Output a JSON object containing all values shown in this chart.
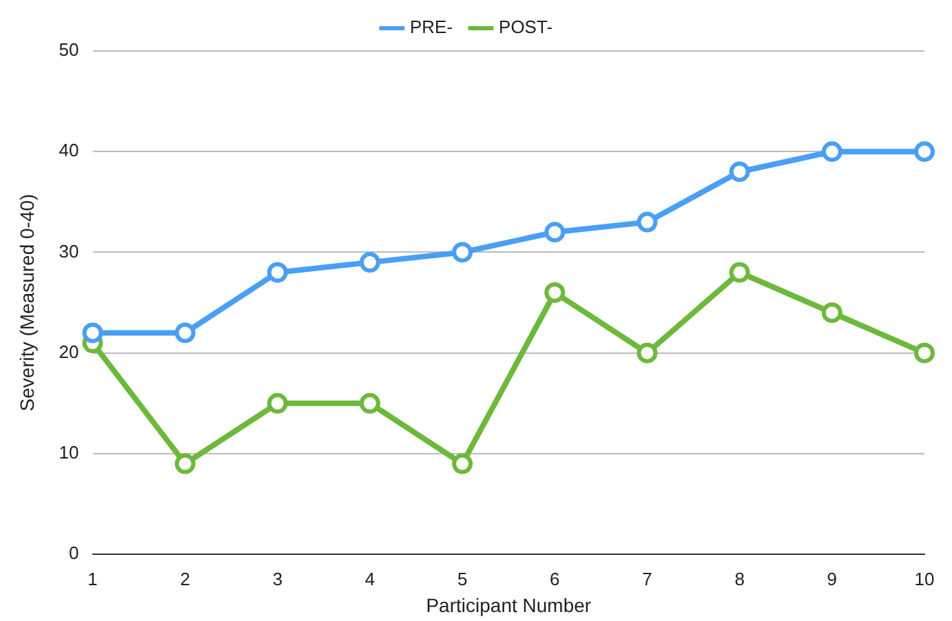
{
  "chart_data": {
    "type": "line",
    "xlabel": "Participant Number",
    "ylabel": "Severity (Measured 0-40)",
    "categories": [
      "1",
      "2",
      "3",
      "4",
      "5",
      "6",
      "7",
      "8",
      "9",
      "10"
    ],
    "series": [
      {
        "name": "PRE-",
        "color": "#4a9ff5",
        "values": [
          22,
          22,
          28,
          29,
          30,
          32,
          33,
          38,
          40,
          40
        ]
      },
      {
        "name": "POST-",
        "color": "#6cb93b",
        "values": [
          21,
          9,
          15,
          15,
          9,
          26,
          20,
          28,
          24,
          20
        ]
      }
    ],
    "ylim": [
      0,
      50
    ],
    "yticks": [
      0,
      10,
      20,
      30,
      40,
      50
    ],
    "grid": "y",
    "legend": "top",
    "marker": "circle",
    "line_style": "solid"
  }
}
